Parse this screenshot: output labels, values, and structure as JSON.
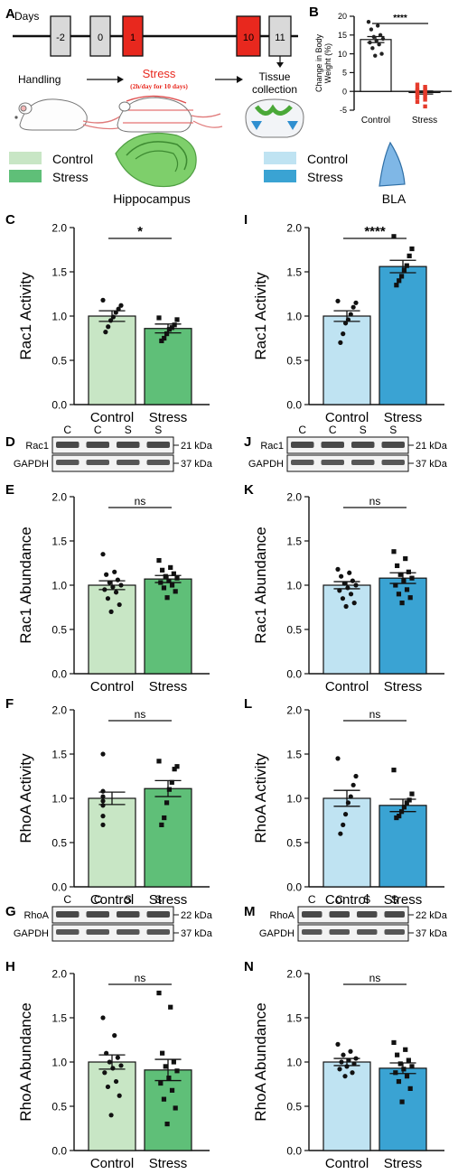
{
  "panel_labels": {
    "A": "A",
    "B": "B",
    "C": "C",
    "D": "D",
    "E": "E",
    "F": "F",
    "G": "G",
    "H": "H",
    "I": "I",
    "J": "J",
    "K": "K",
    "L": "L",
    "M": "M",
    "N": "N"
  },
  "timeline": {
    "axis_label": "Days",
    "days": [
      "-2",
      "0",
      "1",
      "10",
      "11"
    ],
    "stress_days": [
      "1",
      "10"
    ],
    "handling": "Handling",
    "stress_title": "Stress",
    "stress_sub": "(2h/day for 10 days)",
    "tissue_line1": "Tissue",
    "tissue_line2": "collection"
  },
  "legend_left": {
    "items": [
      "Control",
      "Stress"
    ],
    "colors": [
      "#c8e6c5",
      "#5fbf78"
    ],
    "region": "Hippocampus"
  },
  "legend_right": {
    "items": [
      "Control",
      "Stress"
    ],
    "colors": [
      "#bfe3f2",
      "#3aa3d3"
    ],
    "region": "BLA"
  },
  "blots": {
    "rac1_hpc": {
      "lanes": [
        "C",
        "C",
        "S",
        "S"
      ],
      "rows": [
        "Rac1",
        "GAPDH"
      ],
      "sizes": [
        "21 kDa",
        "37 kDa"
      ]
    },
    "rac1_bla": {
      "lanes": [
        "C",
        "C",
        "S",
        "S"
      ],
      "rows": [
        "Rac1",
        "GAPDH"
      ],
      "sizes": [
        "21 kDa",
        "37 kDa"
      ]
    },
    "rhoa_hpc": {
      "lanes": [
        "C",
        "C",
        "S",
        "S"
      ],
      "rows": [
        "RhoA",
        "GAPDH"
      ],
      "sizes": [
        "22 kDa",
        "37 kDa"
      ]
    },
    "rhoa_bla": {
      "lanes": [
        "C",
        "C",
        "S",
        "S"
      ],
      "rows": [
        "RhoA",
        "GAPDH"
      ],
      "sizes": [
        "22 kDa",
        "37 kDa"
      ]
    }
  },
  "chart_data": [
    {
      "id": "B",
      "type": "bar",
      "categories": [
        "Control",
        "Stress"
      ],
      "values": [
        13.8,
        -0.3
      ],
      "sem": [
        0.8,
        0.4
      ],
      "bar_colors": [
        "#ffffff",
        "#ffffff"
      ],
      "point_colors": [
        "#222222",
        "#e53a2b"
      ],
      "points": [
        [
          18.5,
          17.5,
          16.5,
          15,
          14.5,
          14,
          13.5,
          13,
          12.5,
          11.5,
          10,
          9.5
        ],
        [
          1.8,
          1.2,
          0.8,
          0.5,
          0.2,
          0,
          -0.3,
          -0.6,
          -0.9,
          -1.3,
          -1.7,
          -2.2,
          -2.8,
          -4
        ]
      ],
      "ylabel": "Change in Body Weight (%)",
      "ylim": [
        -5,
        20
      ],
      "yticks": [
        "-5",
        "0",
        "5",
        "10",
        "15",
        "20"
      ],
      "significance": "****"
    },
    {
      "id": "C",
      "type": "bar",
      "categories": [
        "Control",
        "Stress"
      ],
      "values": [
        1.0,
        0.86
      ],
      "sem": [
        0.06,
        0.05
      ],
      "bar_colors": [
        "#c8e6c5",
        "#5fbf78"
      ],
      "points": [
        [
          1.18,
          1.12,
          1.08,
          1.04,
          0.99,
          0.95,
          0.88,
          0.82
        ],
        [
          0.98,
          0.96,
          0.9,
          0.87,
          0.85,
          0.8,
          0.75,
          0.72
        ]
      ],
      "ylabel": "Rac1 Activity",
      "ylim": [
        0,
        2
      ],
      "yticks": [
        "0.0",
        "0.5",
        "1.0",
        "1.5",
        "2.0"
      ],
      "significance": "*"
    },
    {
      "id": "E",
      "type": "bar",
      "categories": [
        "Control",
        "Stress"
      ],
      "values": [
        1.0,
        1.07
      ],
      "sem": [
        0.05,
        0.04
      ],
      "bar_colors": [
        "#c8e6c5",
        "#5fbf78"
      ],
      "points": [
        [
          1.35,
          1.15,
          1.12,
          1.06,
          1.03,
          1.0,
          0.98,
          0.95,
          0.92,
          0.85,
          0.78,
          0.7
        ],
        [
          1.28,
          1.2,
          1.17,
          1.13,
          1.1,
          1.08,
          1.05,
          1.03,
          1.0,
          0.97,
          0.93,
          0.86
        ]
      ],
      "ylabel": "Rac1 Abundance",
      "ylim": [
        0,
        2
      ],
      "yticks": [
        "0.0",
        "0.5",
        "1.0",
        "1.5",
        "2.0"
      ],
      "significance": "ns"
    },
    {
      "id": "F",
      "type": "bar",
      "categories": [
        "Control",
        "Stress"
      ],
      "values": [
        1.0,
        1.11
      ],
      "sem": [
        0.07,
        0.09
      ],
      "bar_colors": [
        "#c8e6c5",
        "#5fbf78"
      ],
      "points": [
        [
          1.5,
          1.08,
          1.02,
          0.97,
          0.92,
          0.8,
          0.7
        ],
        [
          1.42,
          1.36,
          1.33,
          1.18,
          1.1,
          0.95,
          0.78,
          0.7
        ]
      ],
      "ylabel": "RhoA Activity",
      "ylim": [
        0,
        2
      ],
      "yticks": [
        "0.0",
        "0.5",
        "1.0",
        "1.5",
        "2.0"
      ],
      "significance": "ns"
    },
    {
      "id": "H",
      "type": "bar",
      "categories": [
        "Control",
        "Stress"
      ],
      "values": [
        1.0,
        0.91
      ],
      "sem": [
        0.08,
        0.12
      ],
      "bar_colors": [
        "#c8e6c5",
        "#5fbf78"
      ],
      "points": [
        [
          1.5,
          1.3,
          1.1,
          1.05,
          1.0,
          0.96,
          0.93,
          0.88,
          0.78,
          0.72,
          0.62,
          0.4
        ],
        [
          1.78,
          1.62,
          1.1,
          1.0,
          0.95,
          0.9,
          0.82,
          0.76,
          0.68,
          0.58,
          0.48,
          0.3
        ]
      ],
      "ylabel": "RhoA Abundance",
      "ylim": [
        0,
        2
      ],
      "yticks": [
        "0.0",
        "0.5",
        "1.0",
        "1.5",
        "2.0"
      ],
      "significance": "ns"
    },
    {
      "id": "I",
      "type": "bar",
      "categories": [
        "Control",
        "Stress"
      ],
      "values": [
        1.0,
        1.56
      ],
      "sem": [
        0.06,
        0.07
      ],
      "bar_colors": [
        "#bfe3f2",
        "#3aa3d3"
      ],
      "points": [
        [
          1.17,
          1.15,
          1.1,
          1.02,
          0.96,
          0.92,
          0.8,
          0.7
        ],
        [
          1.9,
          1.76,
          1.68,
          1.57,
          1.52,
          1.45,
          1.4,
          1.35
        ]
      ],
      "ylabel": "Rac1 Activity",
      "ylim": [
        0,
        2
      ],
      "yticks": [
        "0.0",
        "0.5",
        "1.0",
        "1.5",
        "2.0"
      ],
      "significance": "****"
    },
    {
      "id": "K",
      "type": "bar",
      "categories": [
        "Control",
        "Stress"
      ],
      "values": [
        1.0,
        1.08
      ],
      "sem": [
        0.04,
        0.06
      ],
      "bar_colors": [
        "#bfe3f2",
        "#3aa3d3"
      ],
      "points": [
        [
          1.18,
          1.14,
          1.1,
          1.05,
          1.02,
          1.0,
          0.97,
          0.94,
          0.9,
          0.85,
          0.8,
          0.76
        ],
        [
          1.38,
          1.3,
          1.22,
          1.15,
          1.12,
          1.08,
          1.05,
          1.0,
          0.95,
          0.9,
          0.86,
          0.8
        ]
      ],
      "ylabel": "Rac1 Abundance",
      "ylim": [
        0,
        2
      ],
      "yticks": [
        "0.0",
        "0.5",
        "1.0",
        "1.5",
        "2.0"
      ],
      "significance": "ns"
    },
    {
      "id": "L",
      "type": "bar",
      "categories": [
        "Control",
        "Stress"
      ],
      "values": [
        1.0,
        0.92
      ],
      "sem": [
        0.09,
        0.07
      ],
      "bar_colors": [
        "#bfe3f2",
        "#3aa3d3"
      ],
      "points": [
        [
          1.45,
          1.25,
          1.15,
          1.02,
          0.95,
          0.82,
          0.7,
          0.6
        ],
        [
          1.32,
          1.05,
          0.98,
          0.95,
          0.9,
          0.85,
          0.8,
          0.78
        ]
      ],
      "ylabel": "RhoA Activity",
      "ylim": [
        0,
        2
      ],
      "yticks": [
        "0.0",
        "0.5",
        "1.0",
        "1.5",
        "2.0"
      ],
      "significance": "ns"
    },
    {
      "id": "N",
      "type": "bar",
      "categories": [
        "Control",
        "Stress"
      ],
      "values": [
        1.0,
        0.93
      ],
      "sem": [
        0.04,
        0.06
      ],
      "bar_colors": [
        "#bfe3f2",
        "#3aa3d3"
      ],
      "points": [
        [
          1.2,
          1.12,
          1.08,
          1.04,
          1.02,
          1.0,
          0.98,
          0.95,
          0.92,
          0.88,
          0.84
        ],
        [
          1.22,
          1.14,
          1.08,
          1.02,
          0.98,
          0.95,
          0.92,
          0.88,
          0.84,
          0.78,
          0.7,
          0.55
        ]
      ],
      "ylabel": "RhoA Abundance",
      "ylim": [
        0,
        2
      ],
      "yticks": [
        "0.0",
        "0.5",
        "1.0",
        "1.5",
        "2.0"
      ],
      "significance": "ns"
    }
  ]
}
